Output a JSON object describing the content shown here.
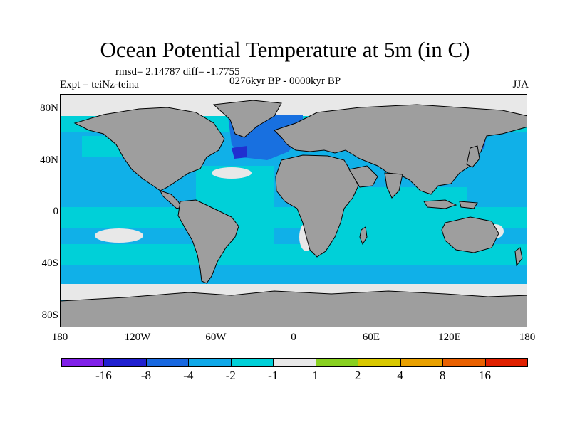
{
  "title": "Ocean Potential Temperature at 5m (in C)",
  "stats": "rmsd= 2.14787 diff= -1.7755",
  "experiment": "Expt = teiNz-teina",
  "period": "0276kyr BP - 0000kyr BP",
  "season": "JJA",
  "colors": {
    "land": "#9e9e9e",
    "sea_ice_white": "#e8e8e8",
    "cyan": "#00d0d8",
    "light_blue": "#10b0e8",
    "mid_blue": "#1870e0",
    "dark_blue": "#2030d0"
  },
  "chart_data": {
    "type": "heatmap",
    "projection": "cylindrical equidistant",
    "variable": "Ocean Potential Temperature at 5m (in C)",
    "lon_range": [
      -180,
      180
    ],
    "lat_range": [
      -90,
      90
    ],
    "x_ticks": [
      "180",
      "120W",
      "60W",
      "0",
      "60E",
      "120E",
      "180"
    ],
    "y_ticks": [
      "80N",
      "40N",
      "0",
      "40S",
      "80S"
    ],
    "legend": {
      "labels": [
        "-16",
        "-8",
        "-4",
        "-2",
        "-1",
        "1",
        "2",
        "4",
        "8",
        "16"
      ],
      "colors": [
        "#8020e8",
        "#2020d0",
        "#1868e0",
        "#10a8e8",
        "#00d0d8",
        "#e8e8e8",
        "#88d020",
        "#d8c800",
        "#e8a000",
        "#e86000",
        "#e02000"
      ]
    }
  }
}
